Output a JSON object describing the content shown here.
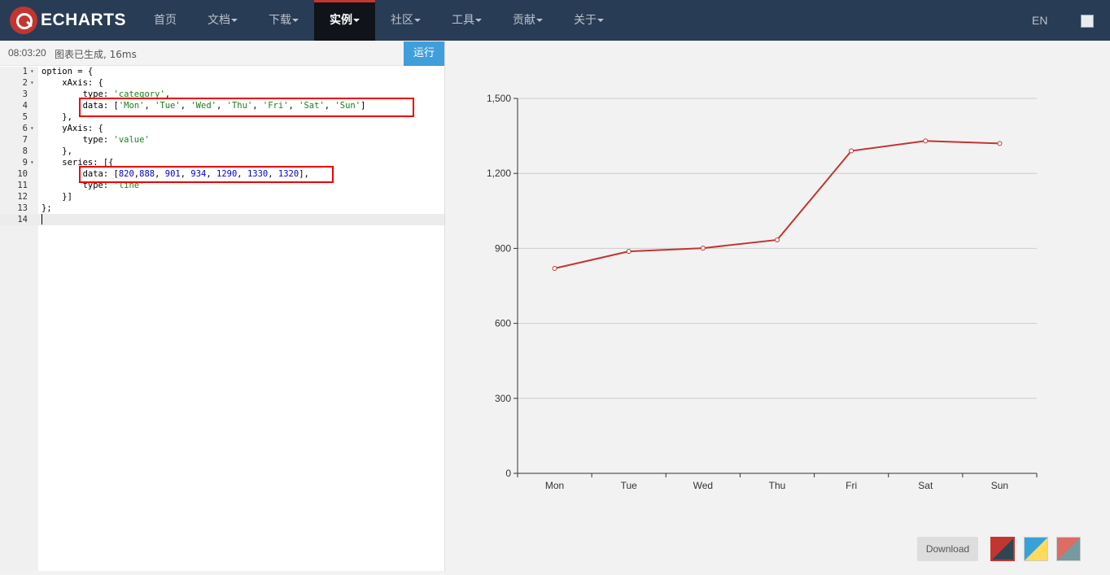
{
  "nav": {
    "logo_text": "ECHARTS",
    "items": [
      {
        "label": "首页",
        "caret": false,
        "active": false
      },
      {
        "label": "文档",
        "caret": true,
        "active": false
      },
      {
        "label": "下载",
        "caret": true,
        "active": false
      },
      {
        "label": "实例",
        "caret": true,
        "active": true
      },
      {
        "label": "社区",
        "caret": true,
        "active": false
      },
      {
        "label": "工具",
        "caret": true,
        "active": false
      },
      {
        "label": "贡献",
        "caret": true,
        "active": false
      },
      {
        "label": "关于",
        "caret": true,
        "active": false
      }
    ],
    "lang": "EN"
  },
  "editor": {
    "status_time": "08:03:20",
    "status_msg": "图表已生成, 16ms",
    "run_label": "运行",
    "lines": [
      "option = {",
      "    xAxis: {",
      "        type: 'category',",
      "        data: ['Mon', 'Tue', 'Wed', 'Thu', 'Fri', 'Sat', 'Sun']",
      "    },",
      "    yAxis: {",
      "        type: 'value'",
      "    },",
      "    series: [{",
      "        data: [820,888, 901, 934, 1290, 1330, 1320],",
      "        type: 'line'",
      "    }]",
      "};",
      ""
    ]
  },
  "chart_data": {
    "type": "line",
    "categories": [
      "Mon",
      "Tue",
      "Wed",
      "Thu",
      "Fri",
      "Sat",
      "Sun"
    ],
    "series": [
      {
        "name": "",
        "values": [
          820,
          888,
          901,
          934,
          1290,
          1330,
          1320
        ]
      }
    ],
    "ylim": [
      0,
      1500
    ],
    "yticks": [
      0,
      300,
      600,
      900,
      1200,
      1500
    ],
    "ytick_labels": [
      "0",
      "300",
      "600",
      "900",
      "1,200",
      "1,500"
    ],
    "title": "",
    "xlabel": "",
    "ylabel": "",
    "color": "#c23531"
  },
  "toolbar": {
    "download_label": "Download"
  }
}
